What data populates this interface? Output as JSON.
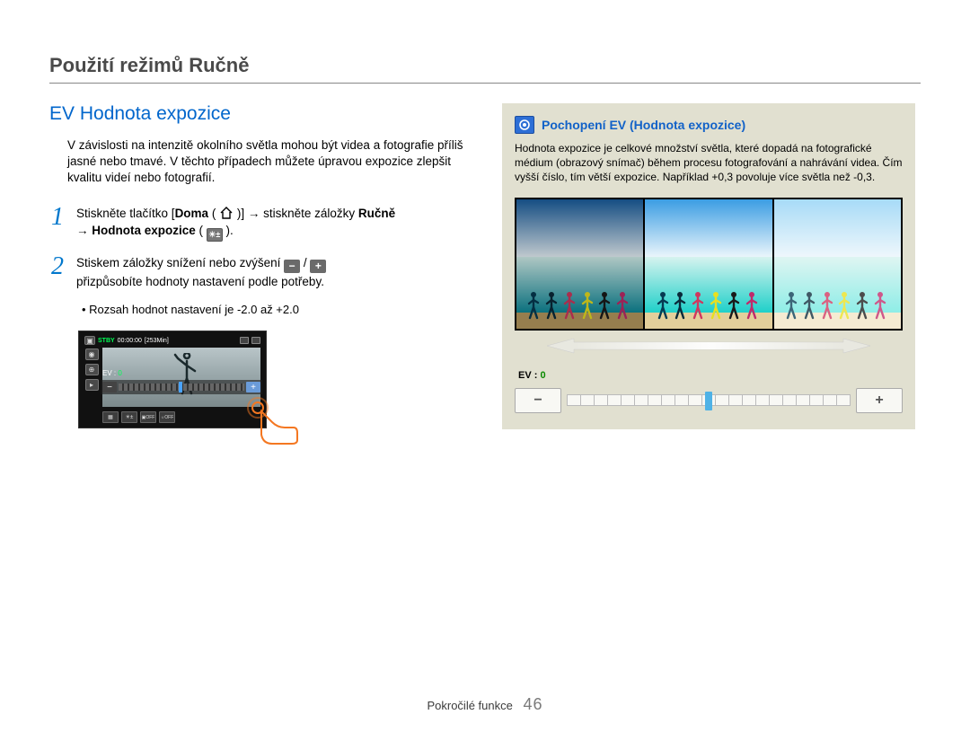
{
  "page": {
    "title": "Použití režimů Ručně",
    "footer_label": "Pokročilé funkce",
    "page_number": "46"
  },
  "left": {
    "heading": "EV Hodnota expozice",
    "intro": "V závislosti na intenzitě okolního světla mohou být videa a fotografie příliš jasné nebo tmavé. V těchto případech můžete úpravou expozice zlepšit kvalitu videí nebo fotografií.",
    "step1_pre": "Stiskněte tlačítko [",
    "step1_home": "Doma",
    "step1_mid1": " ( ",
    "step1_mid2": " )] → stiskněte záložky ",
    "step1_manual": "Ručně",
    "step1_line2a": "→ ",
    "step1_ev": "Hodnota expozice",
    "step1_line2b": " ( ",
    "step1_line2c": " ).",
    "step2_pre": "Stiskem záložky snížení nebo zvýšení ",
    "step2_sep": " / ",
    "step2_post": "přizpůsobíte hodnoty nastavení podle potřeby.",
    "bullet": "Rozsah hodnot nastavení je -2.0 až +2.0",
    "cam": {
      "stby": "STBY",
      "tc": "00:00:00",
      "remain": "[253Min]",
      "ev_label": "EV :",
      "ev_value": "0"
    }
  },
  "right": {
    "box_title": "Pochopení EV (Hodnota expozice)",
    "box_text": "Hodnota expozice je celkové množství světla, které dopadá na fotografické médium (obrazový snímač) během procesu fotografování a nahrávání videa. Čím vyšší číslo, tím větší expozice. Například +0,3 povoluje více světla než -0,3.",
    "panels": [
      {
        "sky": "#1a5fa0",
        "sea": "#0e8a9a",
        "sand": "#b79a60",
        "brightness": 0.7
      },
      {
        "sky": "#3b9de3",
        "sea": "#1fd0c9",
        "sand": "#e3cf9b",
        "brightness": 1.0
      },
      {
        "sky": "#8fd1f5",
        "sea": "#6fe8e0",
        "sand": "#f2e6c6",
        "brightness": 1.4
      }
    ],
    "runner_colors": [
      "#063a52",
      "#0a2a3a",
      "#d0375f",
      "#e8e020",
      "#1a1a1a",
      "#c02a6a"
    ],
    "ev_label": "EV :",
    "ev_value": "0"
  },
  "colors": {
    "heading_blue": "#0066cc",
    "step_num_blue": "#0077cc",
    "info_box_bg": "#e1e0d0",
    "info_badge_bg": "#2d6fd6",
    "accent_green": "#00ff55",
    "finger_orange": "#f47721"
  }
}
